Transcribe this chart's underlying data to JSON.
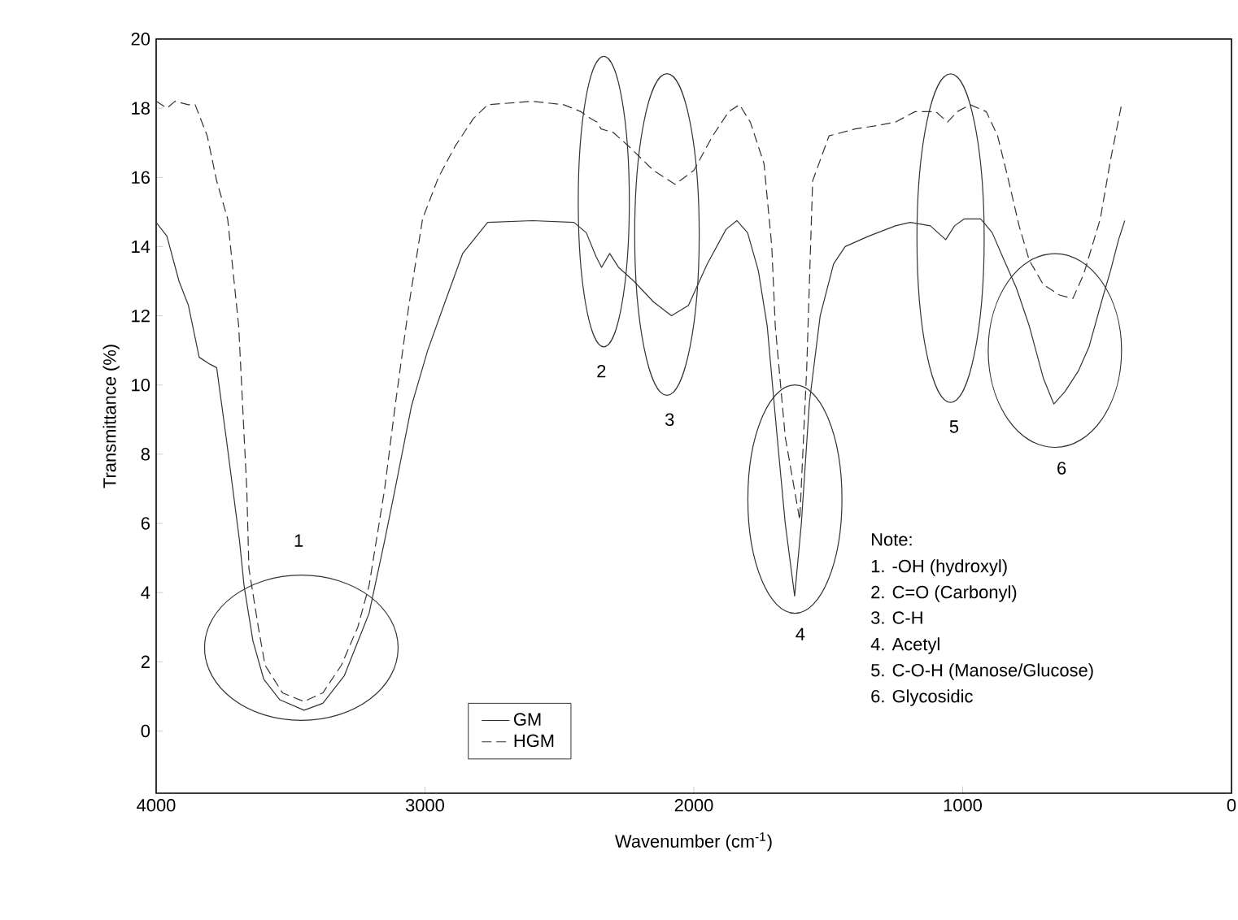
{
  "chart_data": {
    "type": "line",
    "xlabel": "Wavenumber (cm$^{-1}$)",
    "ylabel": "Transmittance (%)",
    "xlim": [
      4000,
      0
    ],
    "xticks": [
      0,
      1000,
      2000,
      3000,
      4000
    ],
    "ylim": [
      -1.8,
      20
    ],
    "yticks": [
      0,
      2,
      4,
      6,
      8,
      10,
      12,
      14,
      16,
      18,
      20
    ],
    "grid": false,
    "legend": "bottom",
    "marker": "none",
    "series": [
      {
        "name": "GM",
        "color": "#333333",
        "line_style": "solid",
        "x": [
          4000,
          3960,
          3915,
          3880,
          3840,
          3800,
          3775,
          3740,
          3715,
          3690,
          3673,
          3640,
          3600,
          3540,
          3450,
          3380,
          3300,
          3208,
          3150,
          3111,
          3050,
          2990,
          2930,
          2860,
          2767,
          2600,
          2446,
          2400,
          2363,
          2343,
          2313,
          2280,
          2223,
          2150,
          2083,
          2020,
          1950,
          1880,
          1840,
          1800,
          1760,
          1727,
          1690,
          1660,
          1625,
          1600,
          1570,
          1530,
          1480,
          1437,
          1350,
          1250,
          1195,
          1120,
          1063,
          1030,
          994,
          933,
          890,
          851,
          800,
          752,
          700,
          661,
          620,
          570,
          530,
          480,
          450,
          420,
          397
        ],
        "values": [
          14.7,
          14.3,
          13.0,
          12.3,
          10.8,
          10.6,
          10.5,
          8.5,
          7.0,
          5.5,
          4.2,
          2.6,
          1.5,
          0.9,
          0.6,
          0.8,
          1.6,
          3.4,
          5.5,
          7.0,
          9.4,
          11.0,
          12.3,
          13.8,
          14.7,
          14.75,
          14.7,
          14.4,
          13.7,
          13.4,
          13.8,
          13.4,
          13.0,
          12.4,
          12.0,
          12.3,
          13.5,
          14.5,
          14.75,
          14.4,
          13.3,
          11.7,
          8.5,
          6.0,
          3.9,
          6.0,
          9.5,
          12.0,
          13.5,
          14.0,
          14.3,
          14.6,
          14.7,
          14.6,
          14.2,
          14.6,
          14.8,
          14.8,
          14.4,
          13.7,
          12.8,
          11.7,
          10.2,
          9.45,
          9.8,
          10.4,
          11.1,
          12.5,
          13.3,
          14.2,
          14.75
        ]
      },
      {
        "name": "HGM",
        "color": "#333333",
        "line_style": "dashed",
        "x": [
          4000,
          3960,
          3930,
          3880,
          3855,
          3810,
          3775,
          3734,
          3693,
          3663,
          3655,
          3620,
          3595,
          3530,
          3450,
          3380,
          3311,
          3250,
          3208,
          3150,
          3111,
          3060,
          3009,
          2950,
          2888,
          2820,
          2767,
          2600,
          2484,
          2420,
          2383,
          2360,
          2345,
          2300,
          2242,
          2150,
          2070,
          2000,
          1930,
          1870,
          1830,
          1790,
          1739,
          1710,
          1697,
          1660,
          1606,
          1580,
          1558,
          1497,
          1400,
          1316,
          1250,
          1177,
          1100,
          1056,
          1020,
          972,
          912,
          870,
          832,
          790,
          752,
          700,
          640,
          590,
          550,
          488,
          450,
          409
        ],
        "values": [
          18.2,
          18.0,
          18.2,
          18.1,
          18.1,
          17.2,
          15.9,
          14.8,
          11.7,
          7.0,
          4.7,
          3.0,
          1.9,
          1.1,
          0.85,
          1.1,
          1.9,
          3.0,
          4.2,
          7.0,
          9.4,
          12.3,
          14.8,
          16.0,
          16.9,
          17.7,
          18.1,
          18.2,
          18.1,
          17.9,
          17.7,
          17.6,
          17.4,
          17.3,
          16.9,
          16.2,
          15.8,
          16.2,
          17.2,
          17.9,
          18.1,
          17.6,
          16.4,
          14.0,
          11.7,
          8.5,
          6.1,
          10.5,
          15.9,
          17.2,
          17.4,
          17.5,
          17.6,
          17.9,
          17.9,
          17.6,
          17.9,
          18.1,
          17.9,
          17.2,
          16.0,
          14.6,
          13.6,
          12.9,
          12.6,
          12.5,
          13.2,
          14.8,
          16.5,
          18.1
        ]
      }
    ],
    "annotations": [
      "1",
      "2",
      "3",
      "4",
      "5",
      "6",
      "Note:",
      "1. -OH (hydroxyl)",
      "2. C=O (Carbonyl)",
      "3. C-H",
      "4. Acetyl",
      "5. C-O-H (Manose/Glucose)",
      "6. Glycosidic"
    ]
  }
}
